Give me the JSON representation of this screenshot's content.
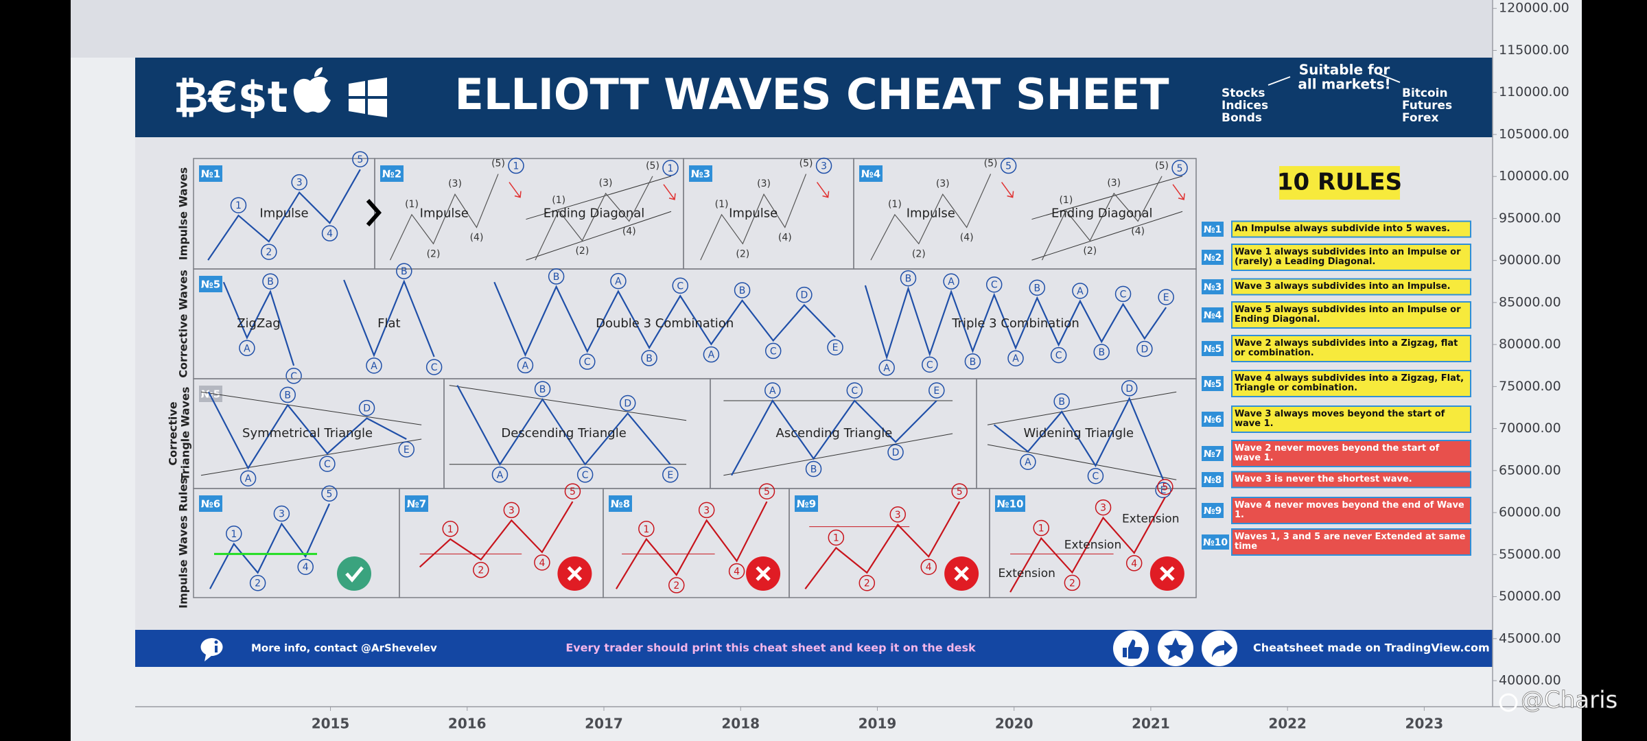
{
  "price_axis": {
    "lim": [
      36900,
      121000
    ],
    "ticks": [
      {
        "value": 120000,
        "label": "120000.00"
      },
      {
        "value": 115000,
        "label": "115000.00"
      },
      {
        "value": 110000,
        "label": "110000.00"
      },
      {
        "value": 105000,
        "label": "105000.00"
      },
      {
        "value": 100000,
        "label": "100000.00"
      },
      {
        "value": 95000,
        "label": "95000.00"
      },
      {
        "value": 90000,
        "label": "90000.00"
      },
      {
        "value": 85000,
        "label": "85000.00"
      },
      {
        "value": 80000,
        "label": "80000.00"
      },
      {
        "value": 75000,
        "label": "75000.00"
      },
      {
        "value": 70000,
        "label": "70000.00"
      },
      {
        "value": 65000,
        "label": "65000.00"
      },
      {
        "value": 60000,
        "label": "60000.00"
      },
      {
        "value": 55000,
        "label": "55000.00"
      },
      {
        "value": 50000,
        "label": "50000.00"
      },
      {
        "value": 45000,
        "label": "45000.00"
      },
      {
        "value": 40000,
        "label": "40000.00"
      }
    ]
  },
  "time_axis": {
    "lim": [
      2013.1,
      2023.5
    ],
    "ticks": [
      2015,
      2016,
      2017,
      2018,
      2019,
      2020,
      2021,
      2022,
      2023
    ]
  },
  "sheet": {
    "logo": "₿€$t",
    "title": "ELLIOTT WAVES CHEAT SHEET",
    "markets": {
      "heading": [
        "Suitable for",
        "all markets!"
      ],
      "left": [
        "Stocks",
        "Indices",
        "Bonds"
      ],
      "right": [
        "Bitcoin",
        "Futures",
        "Forex"
      ]
    },
    "rows": [
      {
        "label": [
          "Impulse Waves"
        ],
        "panels": [
          {
            "badge": "№1",
            "figures": [
              {
                "name": "Impulse",
                "labels": [
                  "1",
                  "2",
                  "3",
                  "4",
                  "5"
                ]
              }
            ]
          },
          {
            "badge": "№2",
            "figures": [
              {
                "name": "Impulse",
                "labels": [
                  "(1)",
                  "(2)",
                  "(3)",
                  "(4)",
                  "(5)",
                  "1"
                ]
              },
              {
                "name": "Ending Diagonal",
                "labels": [
                  "(1)",
                  "(2)",
                  "(3)",
                  "(4)",
                  "(5)",
                  "1"
                ]
              }
            ]
          },
          {
            "badge": "№3",
            "figures": [
              {
                "name": "Impulse",
                "labels": [
                  "(1)",
                  "(2)",
                  "(3)",
                  "(4)",
                  "(5)",
                  "3"
                ]
              }
            ]
          },
          {
            "badge": "№4",
            "figures": [
              {
                "name": "Impulse",
                "labels": [
                  "(1)",
                  "(2)",
                  "(3)",
                  "(4)",
                  "(5)",
                  "5"
                ]
              },
              {
                "name": "Ending Diagonal",
                "labels": [
                  "(1)",
                  "(2)",
                  "(3)",
                  "(4)",
                  "(5)",
                  "5"
                ]
              }
            ]
          }
        ]
      },
      {
        "label": [
          "Corrective Waves"
        ],
        "panels": [
          {
            "badge": "№5",
            "figures": [
              {
                "name": "ZigZag",
                "labels": [
                  "A",
                  "B",
                  "C"
                ]
              },
              {
                "name": "Flat",
                "labels": [
                  "A",
                  "B",
                  "C"
                ]
              },
              {
                "name": "Double 3 Combination",
                "labels": [
                  "A",
                  "B",
                  "C",
                  "A",
                  "B",
                  "C",
                  "A",
                  "B",
                  "C",
                  "D",
                  "E"
                ]
              },
              {
                "name": "Triple 3 Combination",
                "labels": [
                  "A",
                  "B",
                  "C",
                  "A",
                  "B",
                  "C",
                  "A",
                  "B",
                  "C",
                  "A",
                  "B",
                  "C",
                  "D",
                  "E"
                ]
              }
            ]
          }
        ]
      },
      {
        "label": [
          "Corrective",
          "Triangle Waves"
        ],
        "panels": [
          {
            "badge": "№5",
            "figures": [
              {
                "name": "Symmetrical Triangle",
                "labels": [
                  "A",
                  "B",
                  "C",
                  "D",
                  "E"
                ]
              }
            ]
          },
          {
            "figures": [
              {
                "name": "Descending Triangle",
                "labels": [
                  "A",
                  "B",
                  "C",
                  "D",
                  "E"
                ]
              }
            ]
          },
          {
            "figures": [
              {
                "name": "Ascending Triangle",
                "labels": [
                  "A",
                  "B",
                  "C",
                  "D",
                  "E"
                ]
              }
            ]
          },
          {
            "figures": [
              {
                "name": "Widening Triangle",
                "labels": [
                  "A",
                  "B",
                  "C",
                  "D",
                  "E"
                ]
              }
            ]
          }
        ]
      },
      {
        "label": [
          "Impulse Waves Rules"
        ],
        "panels": [
          {
            "badge": "№6",
            "figures": [
              {
                "labels": [
                  "1",
                  "2",
                  "3",
                  "4",
                  "5"
                ]
              }
            ]
          },
          {
            "badge": "№7",
            "figures": [
              {
                "labels": [
                  "1",
                  "2",
                  "3",
                  "4",
                  "5"
                ]
              }
            ]
          },
          {
            "badge": "№8",
            "figures": [
              {
                "labels": [
                  "1",
                  "2",
                  "3",
                  "4",
                  "5"
                ]
              }
            ]
          },
          {
            "badge": "№9",
            "figures": [
              {
                "labels": [
                  "1",
                  "2",
                  "3",
                  "4",
                  "5"
                ]
              }
            ]
          },
          {
            "badge": "№10",
            "figures": [
              {
                "labels": [
                  "1",
                  "2",
                  "3",
                  "4",
                  "5"
                ]
              }
            ],
            "notes": [
              "Extension",
              "Extension",
              "Extension"
            ]
          }
        ]
      }
    ],
    "rules_title": "10 RULES",
    "rules": [
      {
        "number": "№1",
        "text": "An Impulse always subdivide into 5 waves.",
        "color": "#f7ea3c"
      },
      {
        "number": "№2",
        "text": "Wave 1 always subdivides into an Impulse or (rarely) a Leading Diagonal.",
        "color": "#f7ea3c"
      },
      {
        "number": "№3",
        "text": "Wave 3 always subdivides into an Impulse.",
        "color": "#f7ea3c"
      },
      {
        "number": "№4",
        "text": "Wave 5 always subdivides into an Impulse or Ending Diagonal.",
        "color": "#f7ea3c"
      },
      {
        "number": "№5",
        "text": "Wave 2 always subdivides into a Zigzag, flat or combination.",
        "color": "#f7ea3c"
      },
      {
        "number": "№5",
        "text": "Wave 4 always subdivides into a Zigzag, Flat, Triangle or combination.",
        "color": "#f7ea3c"
      },
      {
        "number": "№6",
        "text": "Wave 3 always moves beyond the start of wave 1.",
        "color": "#f7ea3c"
      },
      {
        "number": "№7",
        "text": "Wave 2 never moves beyond the start of wave 1.",
        "color": "#e8504c"
      },
      {
        "number": "№8",
        "text": "Wave 3 is never the shortest wave.",
        "color": "#e8504c"
      },
      {
        "number": "№9",
        "text": "Wave 4 never moves beyond the end of Wave 1.",
        "color": "#e8504c"
      },
      {
        "number": "№10",
        "text": "Waves 1, 3 and 5 are never Extended at same time",
        "color": "#e8504c"
      }
    ],
    "footer": {
      "contact": "More info, contact @ArShevelev",
      "message": "Every trader should print this cheat sheet and keep it on the desk",
      "credit": "Cheatsheet made on TradingView.com"
    }
  },
  "watermark": "@Charis"
}
